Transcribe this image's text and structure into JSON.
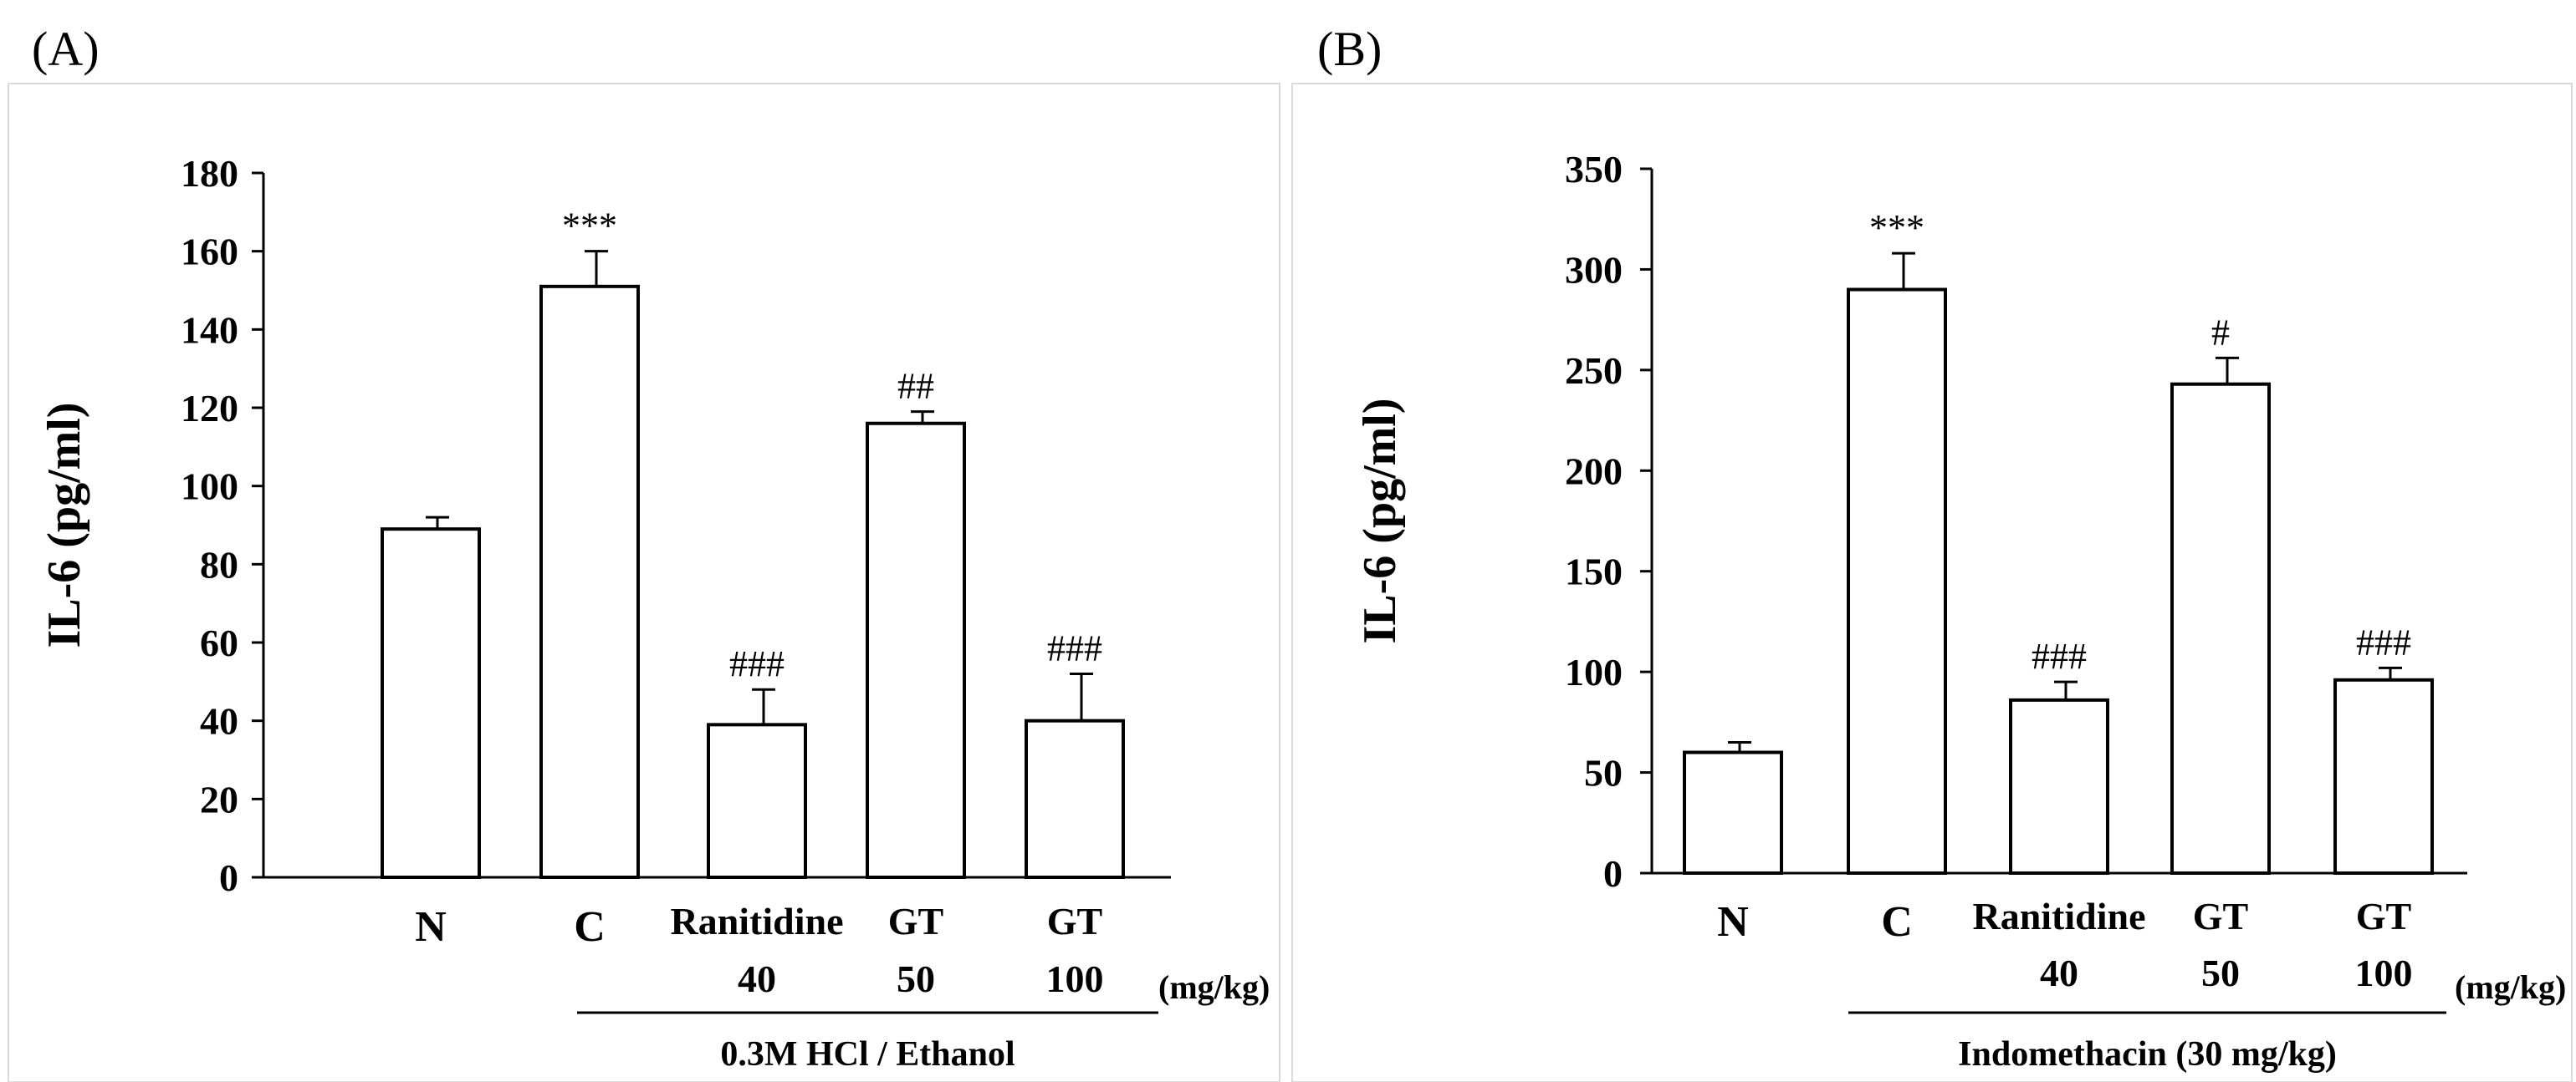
{
  "unit_label": "(mg/kg)",
  "chart_data": [
    {
      "panel": "(A)",
      "type": "bar",
      "ylabel": "IL-6 (pg/ml)",
      "ylim": [
        0,
        180
      ],
      "yticks": [
        0,
        20,
        40,
        60,
        80,
        100,
        120,
        140,
        160,
        180
      ],
      "categories": [
        {
          "name": "N",
          "dose": ""
        },
        {
          "name": "C",
          "dose": ""
        },
        {
          "name": "Ranitidine",
          "dose": "40"
        },
        {
          "name": "GT",
          "dose": "50"
        },
        {
          "name": "GT",
          "dose": "100"
        }
      ],
      "values": [
        89,
        151,
        39,
        116,
        40
      ],
      "errors": [
        3,
        9,
        9,
        3,
        12
      ],
      "annotations": [
        "",
        "***",
        "###",
        "##",
        "###"
      ],
      "group_label": "0.3M HCl / Ethanol",
      "unit_label": "(mg/kg)"
    },
    {
      "panel": "(B)",
      "type": "bar",
      "ylabel": "IL-6 (pg/ml)",
      "ylim": [
        0,
        350
      ],
      "yticks": [
        0,
        50,
        100,
        150,
        200,
        250,
        300,
        350
      ],
      "categories": [
        {
          "name": "N",
          "dose": ""
        },
        {
          "name": "C",
          "dose": ""
        },
        {
          "name": "Ranitidine",
          "dose": "40"
        },
        {
          "name": "GT",
          "dose": "50"
        },
        {
          "name": "GT",
          "dose": "100"
        }
      ],
      "values": [
        60,
        290,
        86,
        243,
        96
      ],
      "errors": [
        5,
        18,
        9,
        13,
        6
      ],
      "annotations": [
        "",
        "***",
        "###",
        "#",
        "###"
      ],
      "group_label": "Indomethacin (30 mg/kg)",
      "unit_label": "(mg/kg)"
    }
  ]
}
